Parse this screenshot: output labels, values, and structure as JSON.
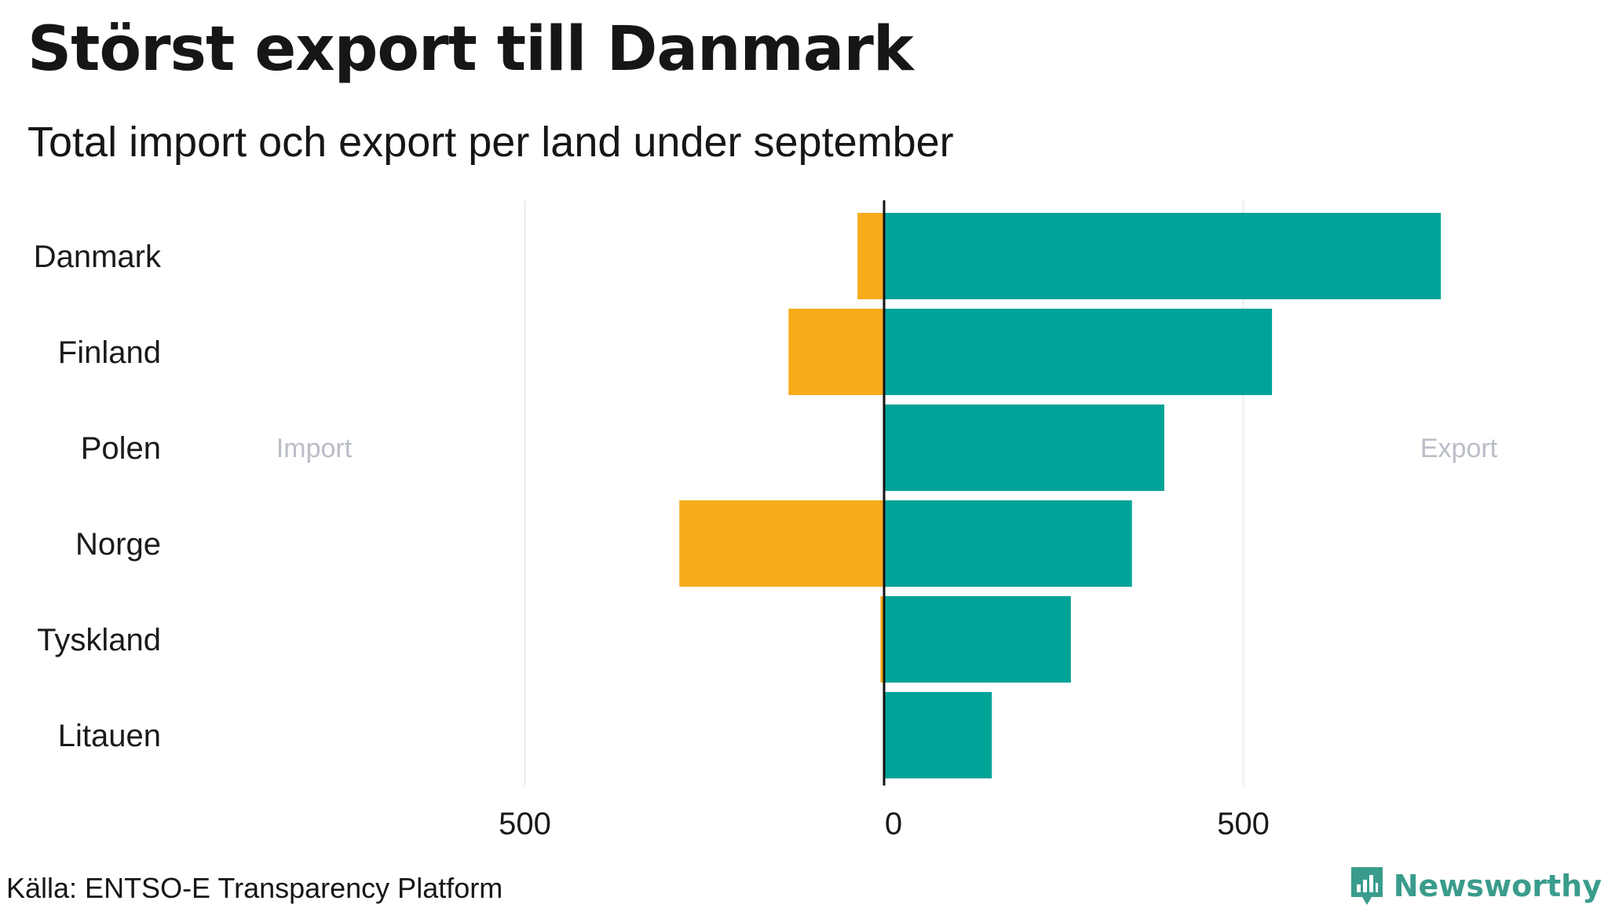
{
  "chart_data": {
    "type": "bar",
    "orientation": "horizontal-diverging",
    "title": "Störst export till Danmark",
    "subtitle": "Total import och export per land under september",
    "categories": [
      "Danmark",
      "Finland",
      "Polen",
      "Norge",
      "Tyskland",
      "Litauen"
    ],
    "series": [
      {
        "name": "Import",
        "values": [
          37,
          133,
          0,
          285,
          5,
          0
        ],
        "color": "#f7ab1b",
        "direction": "left"
      },
      {
        "name": "Export",
        "values": [
          775,
          540,
          390,
          345,
          260,
          150
        ],
        "color": "#00a398",
        "direction": "right"
      }
    ],
    "side_labels": {
      "left": "Import",
      "right": "Export"
    },
    "xlim": [
      -1000,
      860
    ],
    "xticks": [
      -500,
      0,
      500
    ],
    "xtick_labels": [
      "500",
      "0",
      "500"
    ],
    "grid": "vertical",
    "legend": "none"
  },
  "source": "Källa: ENTSO-E Transparency Platform",
  "brand": {
    "name": "Newsworthy",
    "icon": "newsworthy-logo-icon",
    "color": "#3a9c8c"
  }
}
